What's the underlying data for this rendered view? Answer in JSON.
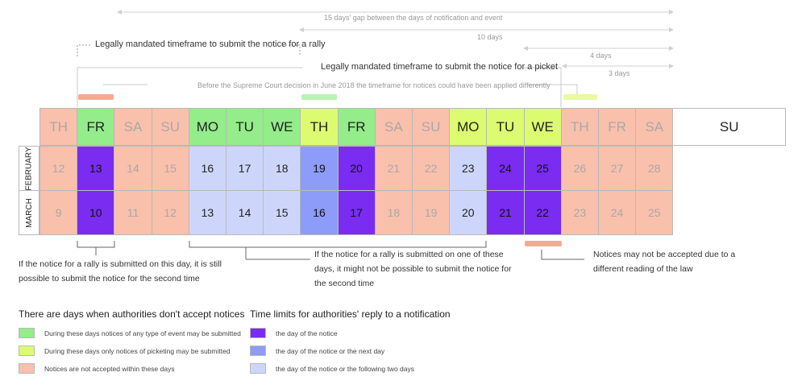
{
  "top": {
    "gap15": "15 days' gap between the days of notification and event",
    "gap10": "10 days",
    "gap4": "4 days",
    "gap3": "3 days",
    "rally_timeframe": "Legally mandated timeframe to submit the notice for a rally",
    "picket_timeframe": "Legally mandated timeframe to submit the notice for a picket",
    "court_note": "Before the Supreme Court decision in June 2018 the timeframe for notices could have been applied differently"
  },
  "calendar": {
    "days": [
      "TH",
      "FR",
      "SA",
      "SU",
      "MO",
      "TU",
      "WE",
      "TH",
      "FR",
      "SA",
      "SU",
      "MO",
      "TU",
      "WE",
      "TH",
      "FR",
      "SA",
      "SU"
    ],
    "header_colors": [
      "salmon",
      "green",
      "salmon",
      "salmon",
      "green",
      "green",
      "green",
      "lime",
      "green",
      "salmon",
      "salmon",
      "lime",
      "lime",
      "lime",
      "salmon",
      "salmon",
      "salmon",
      "white"
    ],
    "months": [
      {
        "name": "FEBRUARY",
        "cells": [
          "12",
          "13",
          "14",
          "15",
          "16",
          "17",
          "18",
          "19",
          "20",
          "21",
          "22",
          "23",
          "24",
          "25",
          "26",
          "27",
          "28"
        ],
        "colors": [
          "salmon",
          "dark",
          "salmon",
          "salmon",
          "light",
          "light",
          "light",
          "mid",
          "dark",
          "salmon",
          "salmon",
          "light",
          "dark",
          "dark",
          "salmon",
          "salmon",
          "salmon"
        ]
      },
      {
        "name": "MARCH",
        "cells": [
          "9",
          "10",
          "11",
          "12",
          "13",
          "14",
          "15",
          "16",
          "17",
          "18",
          "19",
          "20",
          "21",
          "22",
          "23",
          "24",
          "25"
        ],
        "colors": [
          "salmon",
          "dark",
          "salmon",
          "salmon",
          "light",
          "light",
          "light",
          "mid",
          "dark",
          "salmon",
          "salmon",
          "light",
          "dark",
          "dark",
          "salmon",
          "salmon",
          "salmon"
        ]
      }
    ]
  },
  "notes": {
    "note1": "If the notice for a rally is submitted on this day, it is still possible to submit the notice for the second time",
    "note2": "If the notice for a rally is submitted on one of these days, it might not be possible to submit the notice for the second time",
    "note3": "Notices may not be accepted due to a different reading of the law"
  },
  "legend_left": {
    "title": "There are days when authorities don't accept notices",
    "items": [
      {
        "color": "#94ec8a",
        "label": "During these days notices of any type of event may be submitted"
      },
      {
        "color": "#dcfb70",
        "label": "During these days only notices of picketing may be submitted"
      },
      {
        "color": "#f9c0ac",
        "label": "Notices are not accepted within these days"
      }
    ]
  },
  "legend_right": {
    "title": "Time limits for authorities' reply to a notification",
    "items": [
      {
        "color": "#7a2cf0",
        "label": "the day of the notice"
      },
      {
        "color": "#8c9cf8",
        "label": "the day of the notice or the next day"
      },
      {
        "color": "#cdd6fa",
        "label": "the day of the notice or the following two days"
      }
    ]
  }
}
